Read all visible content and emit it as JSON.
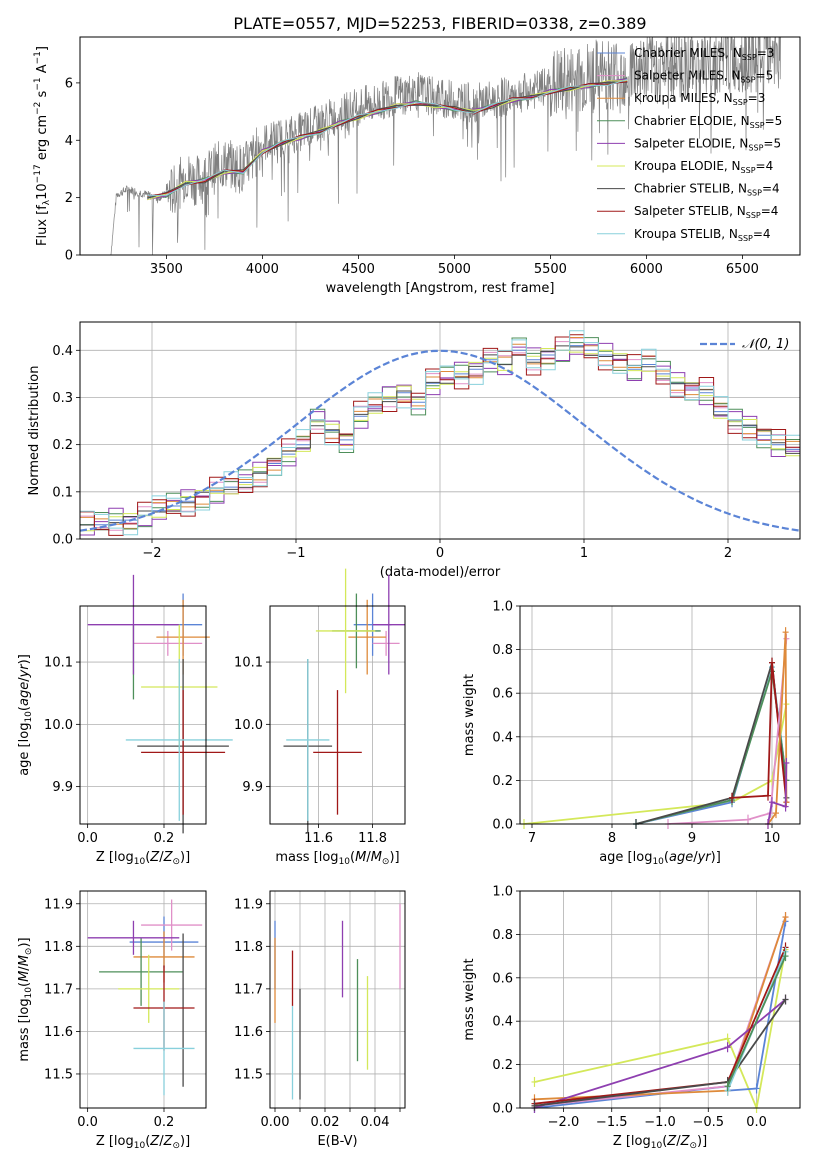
{
  "title": "PLATE=0557, MJD=52253, FIBERID=0338, z=0.389",
  "colors": {
    "chabrier_miles": "#5b84d6",
    "salpeter_miles": "#e090c8",
    "kroupa_miles": "#de8a3a",
    "chabrier_elodie": "#4e8f5a",
    "salpeter_elodie": "#8e3fb0",
    "kroupa_elodie": "#d4e85a",
    "chabrier_stelib": "#4a4a4a",
    "salpeter_stelib": "#a01818",
    "kroupa_stelib": "#88d0dc",
    "data": "#808080",
    "gauss": "#5b84d6"
  },
  "chart_data": [
    {
      "id": "spectrum",
      "type": "line",
      "xlabel": "wavelength [Angstrom, rest frame]",
      "ylabel": "Flux [f_λ 10^-17 erg cm^-2 s^-1 A^-1]",
      "xlim": [
        3050,
        6800
      ],
      "ylim": [
        0,
        7.6
      ],
      "xticks": [
        3500,
        4000,
        4500,
        5000,
        5500,
        6000,
        6500
      ],
      "yticks": [
        0,
        2,
        4,
        6
      ],
      "legend_position": "upper-right",
      "data_series": {
        "name": "data",
        "x": [
          3210,
          3240,
          3300,
          3350,
          3400,
          3450,
          3500,
          3550,
          3600,
          3650,
          3700,
          3750,
          3800,
          3850,
          3900,
          3950,
          4000,
          4100,
          4200,
          4300,
          4400,
          4500,
          4600,
          4700,
          4800,
          4900,
          5000,
          5100,
          5200,
          5300,
          5400,
          5500,
          5600,
          5700,
          5800,
          5900,
          6000,
          6100,
          6200,
          6300,
          6400,
          6500,
          6600,
          6700
        ],
        "y": [
          0,
          2.1,
          2.3,
          2.2,
          2.1,
          2.0,
          2.1,
          2.3,
          2.8,
          2.6,
          2.7,
          3.0,
          3.2,
          3.1,
          3.0,
          3.4,
          3.9,
          4.1,
          4.3,
          4.6,
          4.9,
          5.2,
          5.3,
          5.6,
          5.7,
          5.5,
          5.4,
          5.3,
          5.4,
          5.6,
          5.7,
          5.9,
          6.0,
          6.2,
          6.3,
          6.4,
          6.5,
          6.6,
          6.7,
          6.7,
          6.8,
          6.9,
          7.0,
          7.2
        ]
      },
      "model_x": [
        3400,
        3500,
        3600,
        3700,
        3800,
        3900,
        4000,
        4100,
        4200,
        4300,
        4400,
        4500,
        4600,
        4700,
        4800,
        4900,
        5000,
        5100,
        5200,
        5300,
        5400,
        5500,
        5600,
        5700,
        5800,
        5900
      ],
      "model_y": [
        2.0,
        2.1,
        2.5,
        2.6,
        2.9,
        2.9,
        3.6,
        3.9,
        4.1,
        4.3,
        4.6,
        4.8,
        5.0,
        5.2,
        5.3,
        5.2,
        5.1,
        5.0,
        5.2,
        5.4,
        5.5,
        5.7,
        5.8,
        5.9,
        6.0,
        6.1
      ],
      "legend": [
        {
          "label": "Chabrier MILES, N",
          "sub": "SSP",
          "value": "=3",
          "color_key": "chabrier_miles"
        },
        {
          "label": "Salpeter MILES, N",
          "sub": "SSP",
          "value": "=5",
          "color_key": "salpeter_miles"
        },
        {
          "label": "Kroupa MILES, N",
          "sub": "SSP",
          "value": "=3",
          "color_key": "kroupa_miles"
        },
        {
          "label": "Chabrier ELODIE, N",
          "sub": "SSP",
          "value": "=5",
          "color_key": "chabrier_elodie"
        },
        {
          "label": "Salpeter ELODIE, N",
          "sub": "SSP",
          "value": "=5",
          "color_key": "salpeter_elodie"
        },
        {
          "label": "Kroupa ELODIE, N",
          "sub": "SSP",
          "value": "=4",
          "color_key": "kroupa_elodie"
        },
        {
          "label": "Chabrier STELIB, N",
          "sub": "SSP",
          "value": "=4",
          "color_key": "chabrier_stelib"
        },
        {
          "label": "Salpeter STELIB, N",
          "sub": "SSP",
          "value": "=4",
          "color_key": "salpeter_stelib"
        },
        {
          "label": "Kroupa STELIB, N",
          "sub": "SSP",
          "value": "=4",
          "color_key": "kroupa_stelib"
        }
      ]
    },
    {
      "id": "residuals",
      "type": "line",
      "xlabel": "(data-model)/error",
      "ylabel": "Normed distribution",
      "xlim": [
        -2.5,
        2.5
      ],
      "ylim": [
        0,
        0.46
      ],
      "xticks": [
        -2,
        -1,
        0,
        1,
        2
      ],
      "yticks": [
        0.0,
        0.1,
        0.2,
        0.3,
        0.4
      ],
      "grid": true,
      "legend_label": "N(0,1)",
      "legend_position": "upper-right",
      "bin_width": 0.1,
      "bin_start": -2.5,
      "base_histogram": [
        0.03,
        0.03,
        0.04,
        0.04,
        0.05,
        0.06,
        0.07,
        0.08,
        0.09,
        0.1,
        0.11,
        0.12,
        0.14,
        0.16,
        0.18,
        0.2,
        0.25,
        0.23,
        0.21,
        0.26,
        0.28,
        0.3,
        0.31,
        0.29,
        0.33,
        0.34,
        0.35,
        0.36,
        0.38,
        0.37,
        0.4,
        0.38,
        0.39,
        0.4,
        0.41,
        0.4,
        0.39,
        0.38,
        0.36,
        0.37,
        0.35,
        0.33,
        0.32,
        0.31,
        0.27,
        0.25,
        0.24,
        0.22,
        0.2,
        0.19,
        0.17,
        0.16,
        0.15,
        0.14,
        0.12,
        0.1,
        0.09,
        0.08,
        0.07,
        0.06,
        0.06,
        0.05,
        0.05,
        0.04,
        0.04,
        0.04,
        0.03,
        0.03,
        0.03,
        0.03
      ],
      "series_offsets": [
        0.0,
        0.012,
        -0.01,
        0.015,
        -0.014,
        0.008,
        -0.006,
        0.018,
        -0.018
      ]
    },
    {
      "id": "age_vs_Z",
      "type": "scatter",
      "xlabel": "Z [log10(Z/Z_sun)]",
      "ylabel": "age [log10(age/yr)]",
      "xlim": [
        -0.02,
        0.31
      ],
      "ylim": [
        9.84,
        10.19
      ],
      "xticks": [
        0.0,
        0.2
      ],
      "xtick_labels": [
        "0.0",
        "0.2"
      ],
      "yticks": [
        9.9,
        10.0,
        10.1
      ],
      "ytick_labels": [
        "9.9",
        "10.0",
        "10.1"
      ],
      "grid": true,
      "points": [
        {
          "c": "chabrier_miles",
          "x": 0.25,
          "xe": 0.05,
          "y": 10.16,
          "ye": 0.05
        },
        {
          "c": "salpeter_miles",
          "x": 0.21,
          "xe": 0.09,
          "y": 10.13,
          "ye": 0.02
        },
        {
          "c": "kroupa_miles",
          "x": 0.25,
          "xe": 0.07,
          "y": 10.14,
          "ye": 0.06
        },
        {
          "c": "chabrier_elodie",
          "x": 0.12,
          "xe": 0.0,
          "y": 10.1,
          "ye": 0.06
        },
        {
          "c": "salpeter_elodie",
          "x": 0.12,
          "xe": 0.12,
          "y": 10.16,
          "ye": 0.08
        },
        {
          "c": "kroupa_elodie",
          "x": 0.24,
          "xe": 0.1,
          "y": 10.06,
          "ye": 0.1
        },
        {
          "c": "chabrier_stelib",
          "x": 0.25,
          "xe": 0.12,
          "y": 9.965,
          "ye": 0.14
        },
        {
          "c": "salpeter_stelib",
          "x": 0.25,
          "xe": 0.11,
          "y": 9.955,
          "ye": 0.1
        },
        {
          "c": "kroupa_stelib",
          "x": 0.24,
          "xe": 0.14,
          "y": 9.975,
          "ye": 0.13
        }
      ]
    },
    {
      "id": "age_vs_mass",
      "type": "scatter",
      "xlabel": "mass [log10(M/M_sun)]",
      "ylabel": "",
      "xlim": [
        11.42,
        11.92
      ],
      "ylim": [
        9.84,
        10.19
      ],
      "xticks": [
        11.6,
        11.8
      ],
      "xtick_labels": [
        "11.6",
        "11.8"
      ],
      "yticks": [
        9.9,
        10.0,
        10.1
      ],
      "ytick_labels": [
        "9.9",
        "10.0",
        "10.1"
      ],
      "grid": true,
      "points": [
        {
          "c": "chabrier_miles",
          "x": 11.8,
          "xe": 0.07,
          "y": 10.16,
          "ye": 0.05
        },
        {
          "c": "salpeter_miles",
          "x": 11.85,
          "xe": 0.05,
          "y": 10.13,
          "ye": 0.02
        },
        {
          "c": "kroupa_miles",
          "x": 11.78,
          "xe": 0.07,
          "y": 10.14,
          "ye": 0.06
        },
        {
          "c": "chabrier_elodie",
          "x": 11.74,
          "xe": 0.09,
          "y": 10.15,
          "ye": 0.06
        },
        {
          "c": "salpeter_elodie",
          "x": 11.86,
          "xe": 0.06,
          "y": 10.16,
          "ye": 0.08
        },
        {
          "c": "kroupa_elodie",
          "x": 11.7,
          "xe": 0.11,
          "y": 10.15,
          "ye": 0.1
        },
        {
          "c": "chabrier_stelib",
          "x": 11.56,
          "xe": 0.09,
          "y": 9.965,
          "ye": 0.14
        },
        {
          "c": "salpeter_stelib",
          "x": 11.67,
          "xe": 0.09,
          "y": 9.955,
          "ye": 0.1
        },
        {
          "c": "kroupa_stelib",
          "x": 11.56,
          "xe": 0.08,
          "y": 9.975,
          "ye": 0.13
        }
      ]
    },
    {
      "id": "mass_weight_vs_age",
      "type": "line",
      "xlabel": "age [log10(age/yr)]",
      "ylabel": "mass weight",
      "xlim": [
        6.85,
        10.35
      ],
      "ylim": [
        0,
        1.0
      ],
      "xticks": [
        7,
        8,
        9,
        10
      ],
      "xtick_labels": [
        "7",
        "8",
        "9",
        "10"
      ],
      "yticks": [
        0,
        0.2,
        0.4,
        0.6,
        0.8,
        1.0
      ],
      "ytick_labels": [
        "0.0",
        "0.2",
        "0.4",
        "0.6",
        "0.8",
        "1.0"
      ],
      "grid": true,
      "series": [
        {
          "c": "kroupa_elodie",
          "x": [
            6.9,
            9.5,
            10.0,
            10.18
          ],
          "y": [
            0.0,
            0.1,
            0.2,
            0.55
          ]
        },
        {
          "c": "chabrier_miles",
          "x": [
            8.3,
            9.5,
            10.0,
            10.18
          ],
          "y": [
            0.0,
            0.1,
            0.72,
            0.2
          ]
        },
        {
          "c": "kroupa_stelib",
          "x": [
            8.3,
            9.5,
            10.0,
            10.18
          ],
          "y": [
            0.0,
            0.11,
            0.72,
            0.2
          ]
        },
        {
          "c": "chabrier_elodie",
          "x": [
            8.3,
            9.5,
            10.0,
            10.18
          ],
          "y": [
            0.0,
            0.11,
            0.7,
            0.2
          ]
        },
        {
          "c": "chabrier_stelib",
          "x": [
            8.3,
            9.5,
            10.0,
            10.18
          ],
          "y": [
            0.0,
            0.12,
            0.74,
            0.12
          ]
        },
        {
          "c": "salpeter_stelib",
          "x": [
            9.5,
            9.95,
            10.0,
            10.18
          ],
          "y": [
            0.12,
            0.13,
            0.74,
            0.1
          ]
        },
        {
          "c": "salpeter_miles",
          "x": [
            8.7,
            9.7,
            9.98,
            10.18
          ],
          "y": [
            0.0,
            0.02,
            0.05,
            0.85
          ]
        },
        {
          "c": "kroupa_miles",
          "x": [
            9.95,
            10.05,
            10.17,
            10.18
          ],
          "y": [
            0.0,
            0.05,
            0.88,
            0.1
          ]
        },
        {
          "c": "salpeter_elodie",
          "x": [
            9.95,
            10.0,
            10.17,
            10.18
          ],
          "y": [
            0.0,
            0.1,
            0.08,
            0.28
          ]
        }
      ]
    },
    {
      "id": "mass_vs_Z",
      "type": "scatter",
      "xlabel": "Z [log10(Z/Z_sun)]",
      "ylabel": "mass [log10(M/M_sun)]",
      "xlim": [
        -0.02,
        0.31
      ],
      "ylim": [
        11.42,
        11.93
      ],
      "xticks": [
        0.0,
        0.2
      ],
      "xtick_labels": [
        "0.0",
        "0.2"
      ],
      "yticks": [
        11.5,
        11.6,
        11.7,
        11.8,
        11.9
      ],
      "ytick_labels": [
        "11.5",
        "11.6",
        "11.7",
        "11.8",
        "11.9"
      ],
      "grid": true,
      "points": [
        {
          "c": "chabrier_miles",
          "x": 0.2,
          "xe": 0.09,
          "y": 11.81,
          "ye": 0.06
        },
        {
          "c": "salpeter_miles",
          "x": 0.22,
          "xe": 0.08,
          "y": 11.85,
          "ye": 0.06
        },
        {
          "c": "kroupa_miles",
          "x": 0.2,
          "xe": 0.08,
          "y": 11.775,
          "ye": 0.06
        },
        {
          "c": "chabrier_elodie",
          "x": 0.14,
          "xe": 0.11,
          "y": 11.74,
          "ye": 0.08
        },
        {
          "c": "salpeter_elodie",
          "x": 0.12,
          "xe": 0.12,
          "y": 11.82,
          "ye": 0.04
        },
        {
          "c": "kroupa_elodie",
          "x": 0.16,
          "xe": 0.08,
          "y": 11.7,
          "ye": 0.08
        },
        {
          "c": "chabrier_stelib",
          "x": 0.25,
          "xe": 0.0,
          "y": 11.65,
          "ye": 0.18
        },
        {
          "c": "salpeter_stelib",
          "x": 0.2,
          "xe": 0.08,
          "y": 11.655,
          "ye": 0.1
        },
        {
          "c": "kroupa_stelib",
          "x": 0.2,
          "xe": 0.08,
          "y": 11.56,
          "ye": 0.11
        }
      ]
    },
    {
      "id": "mass_vs_ebv",
      "type": "scatter",
      "xlabel": "E(B-V)",
      "ylabel": "",
      "xlim": [
        -0.002,
        0.052
      ],
      "ylim": [
        11.42,
        11.93
      ],
      "xticks": [
        0.0,
        0.01,
        0.02,
        0.03,
        0.04,
        0.05
      ],
      "xtick_labels": [
        "0.00",
        "",
        "0.02",
        "",
        "0.04",
        ""
      ],
      "yticks": [
        11.5,
        11.6,
        11.7,
        11.8,
        11.9
      ],
      "ytick_labels": [
        "11.5",
        "11.6",
        "11.7",
        "11.8",
        "11.9"
      ],
      "grid": true,
      "points": [
        {
          "c": "chabrier_miles",
          "x": 0.0,
          "xe": 0.0,
          "y": 11.78,
          "ye": 0.08
        },
        {
          "c": "kroupa_miles",
          "x": 0.0,
          "xe": 0.0,
          "y": 11.72,
          "ye": 0.1
        },
        {
          "c": "kroupa_stelib",
          "x": 0.007,
          "xe": 0.0,
          "y": 11.55,
          "ye": 0.11
        },
        {
          "c": "salpeter_stelib",
          "x": 0.007,
          "xe": 0.0,
          "y": 11.725,
          "ye": 0.065
        },
        {
          "c": "chabrier_stelib",
          "x": 0.01,
          "xe": 0.0,
          "y": 11.57,
          "ye": 0.13
        },
        {
          "c": "salpeter_elodie",
          "x": 0.027,
          "xe": 0.0,
          "y": 11.77,
          "ye": 0.09
        },
        {
          "c": "chabrier_elodie",
          "x": 0.033,
          "xe": 0.0,
          "y": 11.65,
          "ye": 0.12
        },
        {
          "c": "kroupa_elodie",
          "x": 0.037,
          "xe": 0.0,
          "y": 11.62,
          "ye": 0.11
        },
        {
          "c": "salpeter_miles",
          "x": 0.05,
          "xe": 0.0,
          "y": 11.8,
          "ye": 0.1
        }
      ]
    },
    {
      "id": "mass_weight_vs_Z",
      "type": "line",
      "xlabel": "Z [log10(Z/Z_sun)]",
      "ylabel": "mass weight",
      "xlim": [
        -2.45,
        0.45
      ],
      "ylim": [
        0,
        1.0
      ],
      "xticks": [
        -2.0,
        -1.5,
        -1.0,
        -0.5,
        0.0
      ],
      "xtick_labels": [
        "−2.0",
        "−1.5",
        "−1.0",
        "−0.5",
        "0.0"
      ],
      "yticks": [
        0,
        0.2,
        0.4,
        0.6,
        0.8,
        1.0
      ],
      "ytick_labels": [
        "0.0",
        "0.2",
        "0.4",
        "0.6",
        "0.8",
        "1.0"
      ],
      "grid": true,
      "series": [
        {
          "c": "kroupa_elodie",
          "x": [
            -2.3,
            -0.3,
            0.0,
            0.3
          ],
          "y": [
            0.12,
            0.32,
            0.0,
            0.73
          ]
        },
        {
          "c": "chabrier_miles",
          "x": [
            -2.3,
            -0.3,
            -0.3,
            0.0,
            0.3
          ],
          "y": [
            0.0,
            0.1,
            0.08,
            0.09,
            0.86
          ]
        },
        {
          "c": "salpeter_miles",
          "x": [
            -2.3,
            -0.3,
            0.3
          ],
          "y": [
            0.01,
            0.1,
            0.88
          ]
        },
        {
          "c": "kroupa_miles",
          "x": [
            -2.3,
            -0.3,
            0.3
          ],
          "y": [
            0.04,
            0.08,
            0.88
          ]
        },
        {
          "c": "salpeter_elodie",
          "x": [
            -2.3,
            -0.3,
            0.3
          ],
          "y": [
            0.0,
            0.28,
            0.5
          ]
        },
        {
          "c": "salpeter_stelib",
          "x": [
            -2.3,
            -0.3,
            0.3
          ],
          "y": [
            0.02,
            0.12,
            0.74
          ]
        },
        {
          "c": "chabrier_stelib",
          "x": [
            -2.3,
            -0.3,
            0.3
          ],
          "y": [
            0.01,
            0.12,
            0.5
          ]
        },
        {
          "c": "kroupa_stelib",
          "x": [
            -0.3,
            0.3
          ],
          "y": [
            0.08,
            0.72
          ]
        },
        {
          "c": "chabrier_elodie",
          "x": [
            -0.3,
            0.3
          ],
          "y": [
            0.1,
            0.7
          ]
        }
      ]
    }
  ]
}
